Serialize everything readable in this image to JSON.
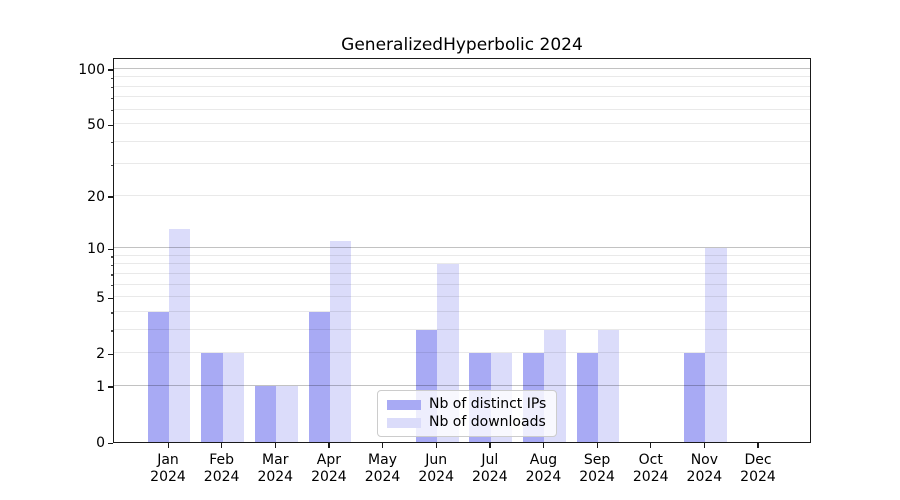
{
  "chart_data": {
    "type": "bar",
    "title": "GeneralizedHyperbolic 2024",
    "categories": [
      "Jan",
      "Feb",
      "Mar",
      "Apr",
      "May",
      "Jun",
      "Jul",
      "Aug",
      "Sep",
      "Oct",
      "Nov",
      "Dec"
    ],
    "x_tick_year": "2024",
    "series": [
      {
        "name": "Nb of distinct IPs",
        "color": "#a8aaf4",
        "values": [
          4,
          2,
          1,
          4,
          0,
          3,
          2,
          2,
          2,
          0,
          2,
          0
        ]
      },
      {
        "name": "Nb of downloads",
        "color": "#dbdcfa",
        "values": [
          13,
          2,
          1,
          11,
          0,
          8,
          2,
          3,
          3,
          0,
          10,
          0
        ]
      }
    ],
    "y_scale": "log10(1+x)",
    "ylim": [
      0,
      116
    ],
    "y_ticks": [
      0,
      1,
      2,
      5,
      10,
      20,
      50,
      100
    ],
    "y_major_gridlines": [
      1,
      10,
      100
    ],
    "y_minor_gridlines": [
      2,
      3,
      4,
      5,
      6,
      7,
      8,
      9,
      20,
      30,
      40,
      50,
      60,
      70,
      80,
      90
    ],
    "grid": true,
    "grid_over_bars": true,
    "legend_position": "lower center",
    "colors": {
      "spine": "#1a1a1a",
      "major_grid": "rgba(0,0,0,0.24)",
      "minor_grid": "rgba(0,0,0,0.085)",
      "legend_border": "#cccccc",
      "legend_background": "rgba(255,255,255,0.8)"
    }
  }
}
